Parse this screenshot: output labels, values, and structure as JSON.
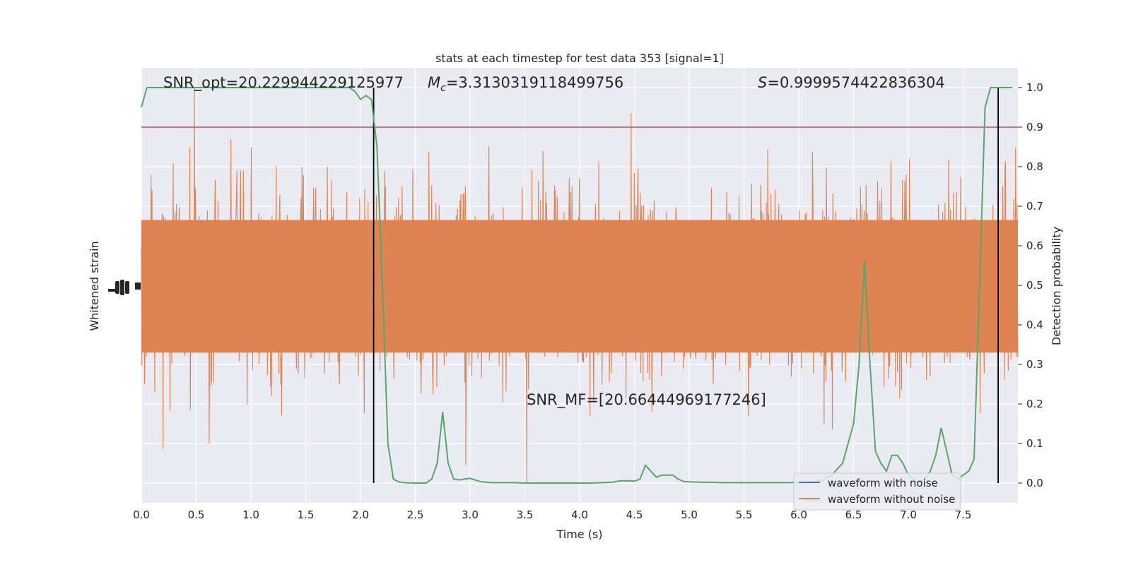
{
  "chart_data": {
    "type": "line",
    "title": "stats at each timestep for test data 353 [signal=1]",
    "xlabel": "Time (s)",
    "ylabel_left": "Whitened strain",
    "ylabel_right": "Detection probability",
    "xlim": [
      0,
      8
    ],
    "ylim_right": [
      -0.05,
      1.05
    ],
    "x_ticks": [
      "0.0",
      "0.5",
      "1.0",
      "1.5",
      "2.0",
      "2.5",
      "3.0",
      "3.5",
      "4.0",
      "4.5",
      "5.0",
      "5.5",
      "6.0",
      "6.5",
      "7.0",
      "7.5"
    ],
    "y_ticks_right": [
      "0.0",
      "0.1",
      "0.2",
      "0.3",
      "0.4",
      "0.5",
      "0.6",
      "0.7",
      "0.8",
      "0.9",
      "1.0"
    ],
    "grid": true,
    "legend_position": "lower-right",
    "threshold": 0.9,
    "vertical_lines": [
      2.12,
      7.82
    ],
    "annotations": {
      "snr_opt": "SNR_opt=20.229944229125977",
      "mc_symbol": "M",
      "mc_sub": "c",
      "mc_value": "=3.3130319118499756",
      "s_symbol": "S",
      "s_value": "=0.9999574422836304",
      "snr_mf": "SNR_MF=[20.66444969177246]"
    },
    "series": [
      {
        "name": "waveform with noise",
        "color": "#4c72b0"
      },
      {
        "name": "waveform without noise",
        "color": "#dd8452"
      }
    ],
    "detection_probability": {
      "color": "#55a868",
      "x": [
        0.0,
        0.05,
        0.1,
        0.2,
        0.3,
        0.4,
        0.5,
        0.6,
        0.7,
        0.8,
        0.9,
        1.0,
        1.1,
        1.2,
        1.3,
        1.4,
        1.5,
        1.6,
        1.7,
        1.8,
        1.9,
        1.95,
        2.0,
        2.05,
        2.1,
        2.15,
        2.2,
        2.25,
        2.3,
        2.35,
        2.4,
        2.5,
        2.6,
        2.65,
        2.7,
        2.75,
        2.8,
        2.85,
        2.9,
        3.0,
        3.1,
        3.2,
        3.3,
        3.4,
        3.5,
        3.6,
        3.7,
        3.8,
        3.9,
        4.0,
        4.1,
        4.2,
        4.3,
        4.35,
        4.4,
        4.5,
        4.55,
        4.6,
        4.65,
        4.7,
        4.75,
        4.8,
        4.85,
        4.9,
        4.95,
        5.0,
        5.1,
        5.2,
        5.3,
        5.4,
        5.5,
        5.6,
        5.7,
        5.8,
        5.9,
        6.0,
        6.1,
        6.2,
        6.3,
        6.4,
        6.5,
        6.55,
        6.6,
        6.65,
        6.7,
        6.75,
        6.8,
        6.85,
        6.9,
        6.95,
        7.0,
        7.05,
        7.1,
        7.15,
        7.2,
        7.25,
        7.3,
        7.35,
        7.4,
        7.45,
        7.5,
        7.55,
        7.6,
        7.65,
        7.7,
        7.75,
        7.8,
        7.82,
        7.85,
        7.9,
        7.95
      ],
      "y": [
        0.95,
        1.0,
        1.0,
        1.0,
        1.0,
        1.0,
        1.0,
        1.0,
        1.0,
        1.0,
        1.0,
        1.0,
        1.0,
        1.0,
        1.0,
        1.0,
        1.0,
        1.0,
        1.0,
        1.0,
        1.0,
        0.99,
        0.97,
        0.98,
        0.97,
        0.85,
        0.5,
        0.1,
        0.01,
        0.003,
        0.001,
        0.0,
        0.0,
        0.01,
        0.05,
        0.18,
        0.05,
        0.01,
        0.008,
        0.012,
        0.003,
        0.001,
        0.001,
        0.001,
        0.0,
        0.0,
        0.0,
        0.0,
        0.0,
        0.0,
        0.0,
        0.001,
        0.002,
        0.005,
        0.006,
        0.005,
        0.01,
        0.045,
        0.03,
        0.015,
        0.02,
        0.02,
        0.02,
        0.01,
        0.004,
        0.003,
        0.002,
        0.002,
        0.001,
        0.001,
        0.001,
        0.001,
        0.001,
        0.001,
        0.001,
        0.001,
        0.002,
        0.005,
        0.02,
        0.05,
        0.15,
        0.3,
        0.56,
        0.3,
        0.08,
        0.05,
        0.03,
        0.07,
        0.07,
        0.05,
        0.02,
        0.01,
        0.0,
        0.01,
        0.03,
        0.07,
        0.14,
        0.08,
        0.02,
        0.01,
        0.02,
        0.03,
        0.06,
        0.5,
        0.95,
        1.0,
        1.0,
        1.0,
        1.0,
        1.0,
        1.0
      ]
    }
  }
}
